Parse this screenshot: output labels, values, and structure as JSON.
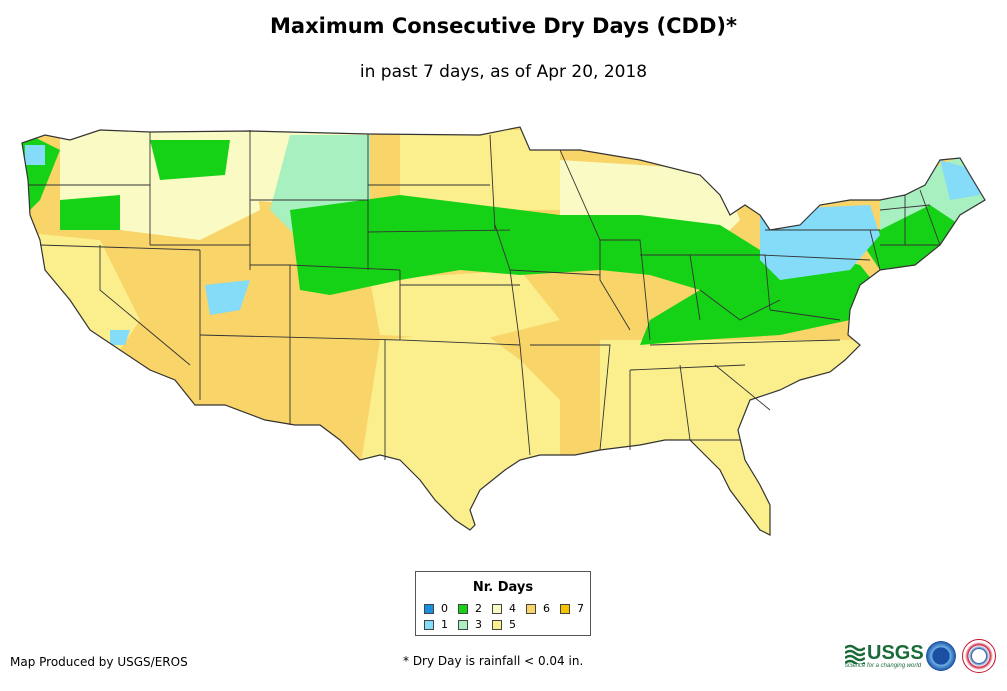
{
  "header": {
    "title": "Maximum Consecutive Dry Days (CDD)*",
    "subtitle": "in past 7 days, as of Apr 20, 2018"
  },
  "legend": {
    "title": "Nr. Days",
    "items": [
      {
        "label": "0",
        "color": "#1a8fe0"
      },
      {
        "label": "1",
        "color": "#84dcf8"
      },
      {
        "label": "2",
        "color": "#16d216"
      },
      {
        "label": "3",
        "color": "#a8f0c0"
      },
      {
        "label": "4",
        "color": "#fafac4"
      },
      {
        "label": "5",
        "color": "#fbee8c"
      },
      {
        "label": "6",
        "color": "#f8d469"
      },
      {
        "label": "7",
        "color": "#f5c400"
      }
    ]
  },
  "footer": {
    "credit": "Map Produced by USGS/EROS",
    "note": "* Dry Day is rainfall < 0.04 in."
  },
  "logos": {
    "usgs": "USGS",
    "usgs_tagline": "science for a changing world"
  }
}
